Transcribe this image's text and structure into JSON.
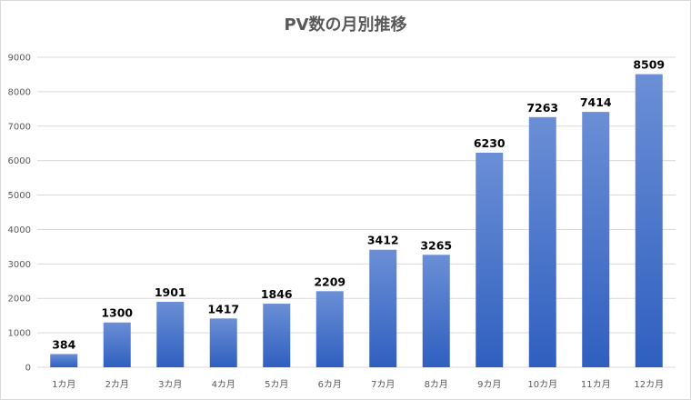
{
  "chart_data": {
    "type": "bar",
    "title": "PV数の月別推移",
    "categories": [
      "1カ月",
      "2カ月",
      "3カ月",
      "4カ月",
      "5カ月",
      "6カ月",
      "7カ月",
      "8カ月",
      "9カ月",
      "10カ月",
      "11カ月",
      "12カ月"
    ],
    "values": [
      384,
      1300,
      1901,
      1417,
      1846,
      2209,
      3412,
      3265,
      6230,
      7263,
      7414,
      8509
    ],
    "ylim": [
      0,
      9000
    ],
    "yticks": [
      0,
      1000,
      2000,
      3000,
      4000,
      5000,
      6000,
      7000,
      8000,
      9000
    ],
    "grid": true,
    "data_labels": true,
    "bar_color_top": "#6b8fd6",
    "bar_color_bottom": "#2f5fbf",
    "grid_color": "#d9d9d9"
  }
}
